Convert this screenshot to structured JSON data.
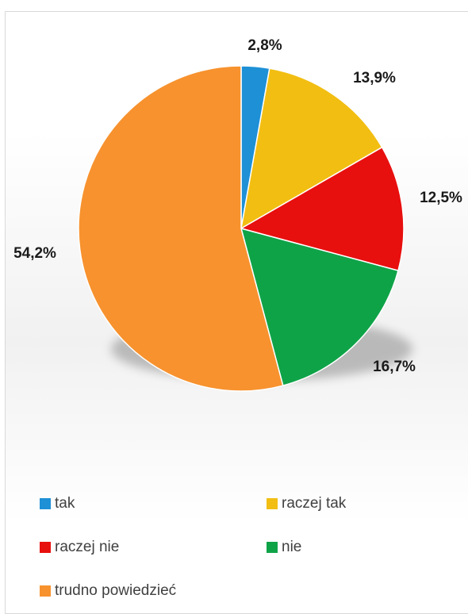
{
  "chart_data": {
    "type": "pie",
    "title": "",
    "start_angle_deg": 0,
    "direction": "clockwise",
    "legend_position": "bottom",
    "slices": [
      {
        "name": "tak",
        "value": 2.8,
        "label": "2,8%",
        "color": "#1E90D6"
      },
      {
        "name": "raczej tak",
        "value": 13.9,
        "label": "13,9%",
        "color": "#F2BE12"
      },
      {
        "name": "raczej nie",
        "value": 12.5,
        "label": "12,5%",
        "color": "#E80F0F"
      },
      {
        "name": "nie",
        "value": 16.7,
        "label": "16,7%",
        "color": "#0FA348"
      },
      {
        "name": "trudno powiedzieć",
        "value": 54.2,
        "label": "54,2%",
        "color": "#F7922E"
      }
    ]
  }
}
